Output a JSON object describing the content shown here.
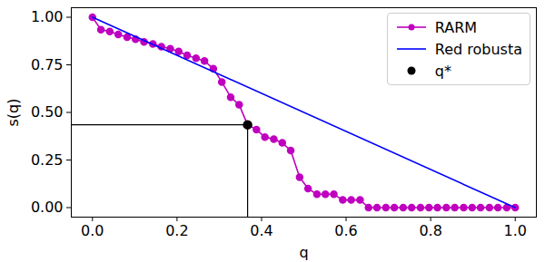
{
  "chart_data": {
    "type": "line",
    "x_label": "q",
    "y_label": "s(q)",
    "xlim": [
      -0.05,
      1.05
    ],
    "ylim": [
      -0.05,
      1.05
    ],
    "xticks": [
      {
        "value": 0,
        "label": "0.0"
      },
      0.2,
      0.4,
      0.6,
      0.8,
      {
        "value": 1,
        "label": "1.0"
      }
    ],
    "yticks": [
      {
        "value": 0,
        "label": "0.00"
      },
      0.25,
      {
        "value": 0.5,
        "label": "0.50"
      },
      0.75,
      {
        "value": 1,
        "label": "1.00"
      }
    ],
    "grid": false,
    "legend": "upper right",
    "series": [
      {
        "name": "RARM",
        "color": "#bf00bf",
        "type": "line",
        "marker": "circle",
        "line_style": "solid",
        "x": [
          0,
          0.02,
          0.041,
          0.061,
          0.082,
          0.102,
          0.122,
          0.143,
          0.163,
          0.184,
          0.204,
          0.224,
          0.245,
          0.265,
          0.286,
          0.306,
          0.327,
          0.347,
          0.367,
          0.388,
          0.408,
          0.429,
          0.449,
          0.469,
          0.49,
          0.51,
          0.531,
          0.551,
          0.571,
          0.592,
          0.612,
          0.633,
          0.653,
          0.673,
          0.694,
          0.714,
          0.735,
          0.755,
          0.776,
          0.796,
          0.816,
          0.837,
          0.857,
          0.878,
          0.898,
          0.918,
          0.939,
          0.959,
          0.98,
          1
        ],
        "values": [
          1,
          0.935,
          0.925,
          0.91,
          0.895,
          0.885,
          0.87,
          0.86,
          0.845,
          0.835,
          0.82,
          0.8,
          0.785,
          0.77,
          0.73,
          0.66,
          0.58,
          0.54,
          0.435,
          0.41,
          0.37,
          0.36,
          0.34,
          0.3,
          0.16,
          0.1,
          0.07,
          0.07,
          0.07,
          0.04,
          0.04,
          0.04,
          0,
          0,
          0,
          0,
          0,
          0,
          0,
          0,
          0,
          0,
          0,
          0,
          0,
          0,
          0,
          0,
          0,
          0
        ]
      },
      {
        "name": "Red robusta",
        "color": "#0000ff",
        "type": "line",
        "marker": "none",
        "line_style": "solid",
        "x": [
          0,
          1
        ],
        "values": [
          1,
          0
        ]
      },
      {
        "name": "q*",
        "color": "#000000",
        "type": "scatter",
        "marker": "circle",
        "x": [
          0.367
        ],
        "values": [
          0.435
        ]
      }
    ]
  }
}
